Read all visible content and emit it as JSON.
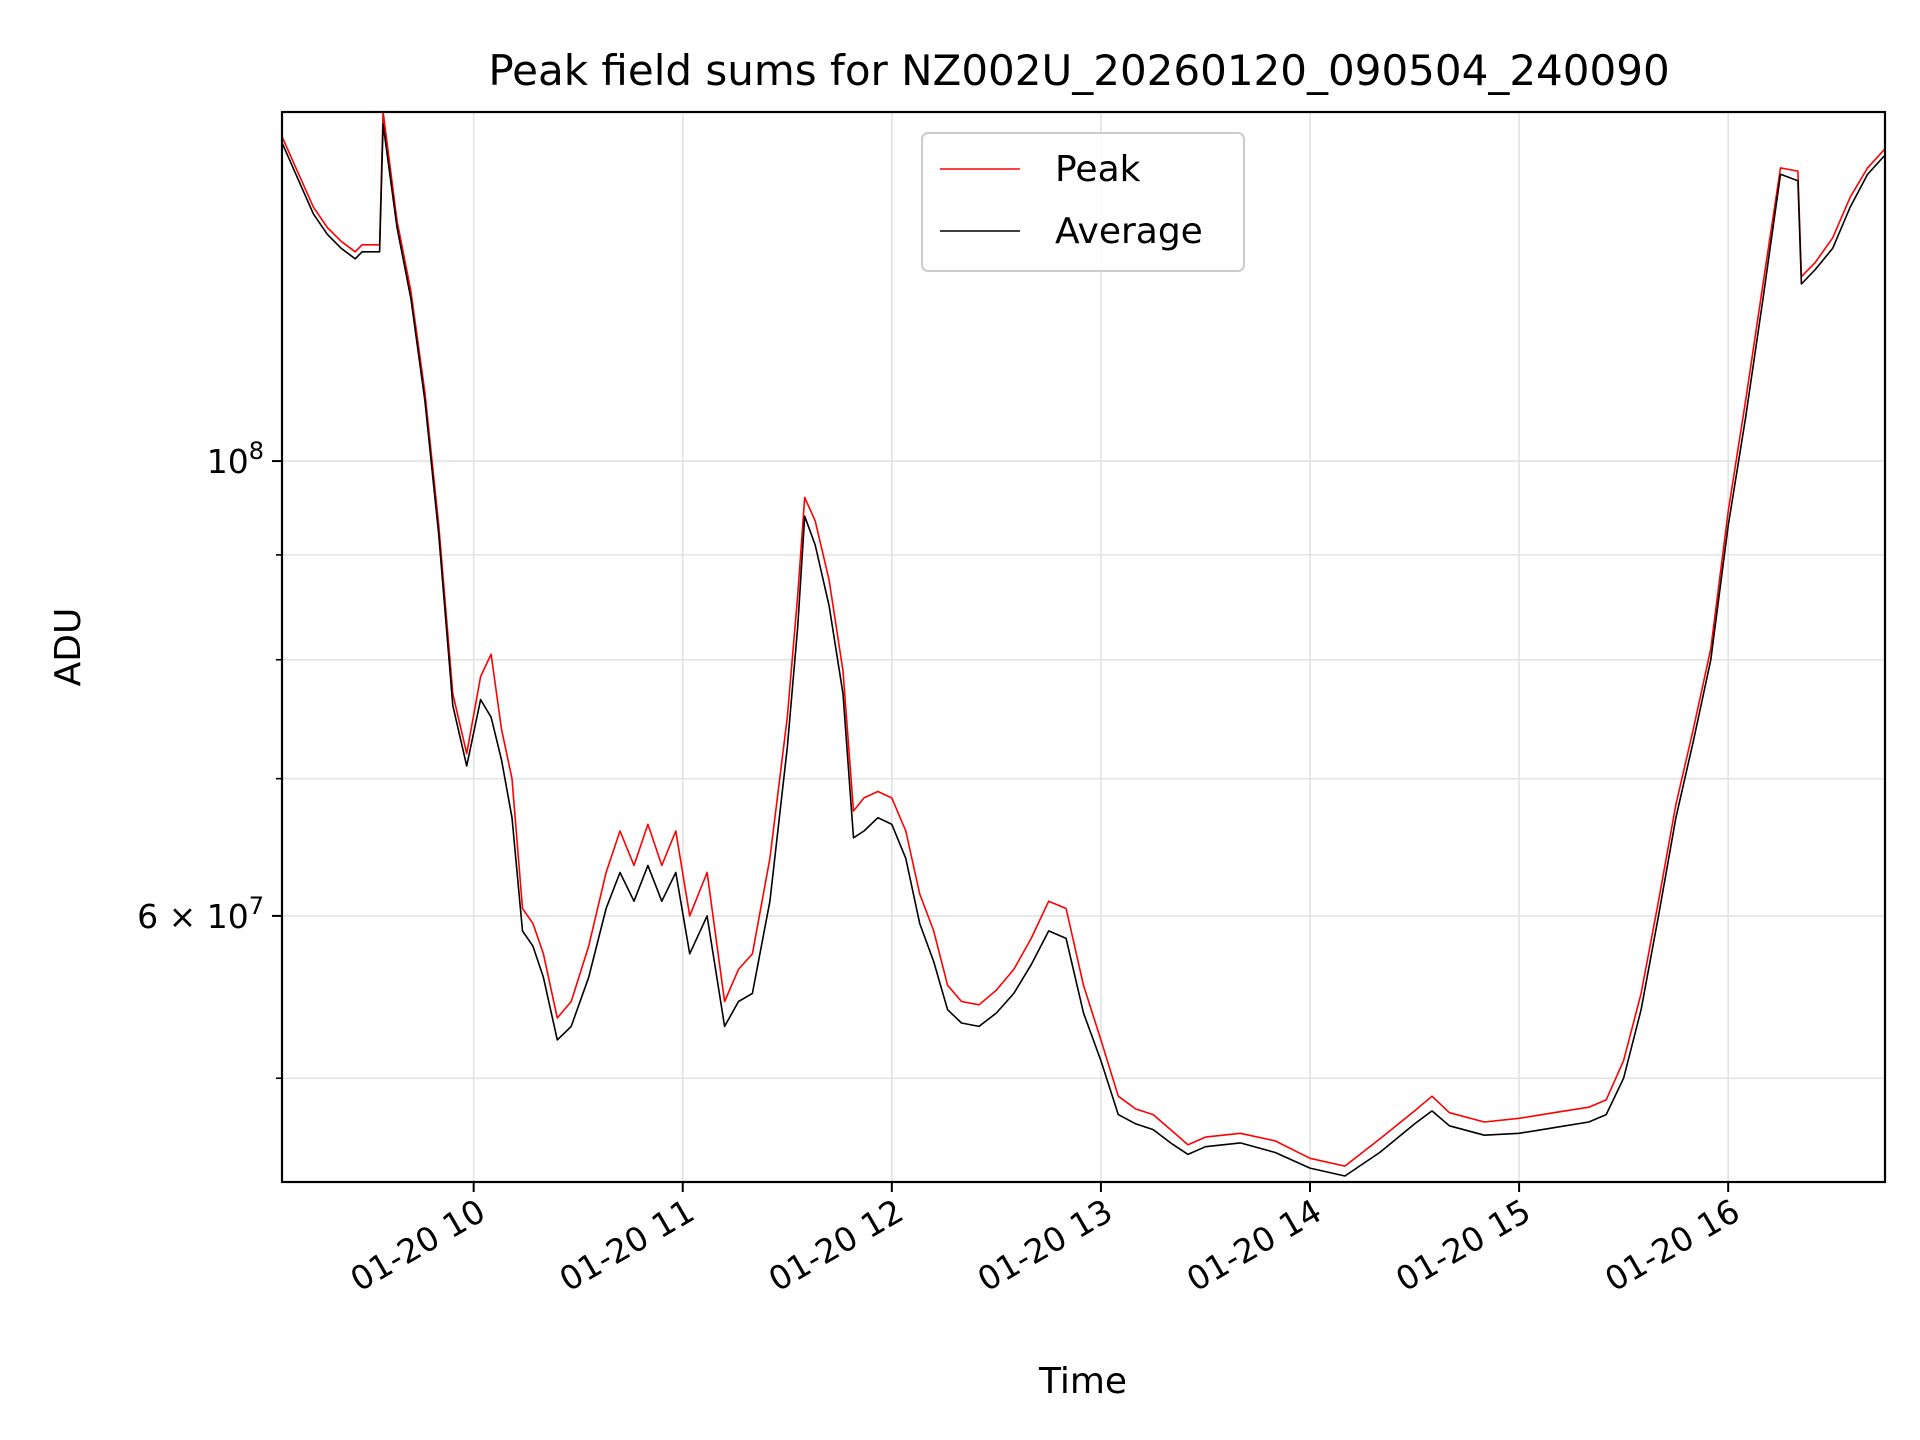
{
  "chart_data": {
    "type": "line",
    "title": "Peak field sums for NZ002U_20260120_090504_240090",
    "xlabel": "Time",
    "ylabel": "ADU",
    "yscale": "log",
    "grid": true,
    "legend_position": "top-center",
    "x_range": [
      "2026-01-20 09:05",
      "2026-01-20 16:45"
    ],
    "ylim": [
      44500000,
      148000000
    ],
    "x_ticks": [
      {
        "time": "2026-01-20 10:00",
        "label": "01-20 10"
      },
      {
        "time": "2026-01-20 11:00",
        "label": "01-20 11"
      },
      {
        "time": "2026-01-20 12:00",
        "label": "01-20 12"
      },
      {
        "time": "2026-01-20 13:00",
        "label": "01-20 13"
      },
      {
        "time": "2026-01-20 14:00",
        "label": "01-20 14"
      },
      {
        "time": "2026-01-20 15:00",
        "label": "01-20 15"
      },
      {
        "time": "2026-01-20 16:00",
        "label": "01-20 16"
      }
    ],
    "y_ticks": [
      {
        "value": 100000000,
        "label": "10",
        "exp": "8"
      },
      {
        "value": 60000000,
        "label": "6 × 10",
        "exp": "7"
      }
    ],
    "y_minor_ticks": [
      50000000,
      70000000,
      80000000,
      90000000
    ],
    "colors": {
      "peak": "#ff0000",
      "average": "#000000"
    },
    "series": [
      {
        "name": "Average",
        "color": "#000000",
        "x": [
          "2026-01-20 09:05",
          "2026-01-20 09:09",
          "2026-01-20 09:14",
          "2026-01-20 09:18",
          "2026-01-20 09:22",
          "2026-01-20 09:26",
          "2026-01-20 09:28",
          "2026-01-20 09:33",
          "2026-01-20 09:34",
          "2026-01-20 09:38",
          "2026-01-20 09:42",
          "2026-01-20 09:46",
          "2026-01-20 09:50",
          "2026-01-20 09:54",
          "2026-01-20 09:58",
          "2026-01-20 10:02",
          "2026-01-20 10:05",
          "2026-01-20 10:08",
          "2026-01-20 10:11",
          "2026-01-20 10:14",
          "2026-01-20 10:17",
          "2026-01-20 10:20",
          "2026-01-20 10:24",
          "2026-01-20 10:28",
          "2026-01-20 10:33",
          "2026-01-20 10:38",
          "2026-01-20 10:42",
          "2026-01-20 10:46",
          "2026-01-20 10:50",
          "2026-01-20 10:54",
          "2026-01-20 10:58",
          "2026-01-20 11:02",
          "2026-01-20 11:07",
          "2026-01-20 11:12",
          "2026-01-20 11:16",
          "2026-01-20 11:20",
          "2026-01-20 11:25",
          "2026-01-20 11:30",
          "2026-01-20 11:33",
          "2026-01-20 11:35",
          "2026-01-20 11:38",
          "2026-01-20 11:42",
          "2026-01-20 11:46",
          "2026-01-20 11:49",
          "2026-01-20 11:52",
          "2026-01-20 11:56",
          "2026-01-20 12:00",
          "2026-01-20 12:04",
          "2026-01-20 12:08",
          "2026-01-20 12:12",
          "2026-01-20 12:16",
          "2026-01-20 12:20",
          "2026-01-20 12:25",
          "2026-01-20 12:30",
          "2026-01-20 12:35",
          "2026-01-20 12:40",
          "2026-01-20 12:45",
          "2026-01-20 12:50",
          "2026-01-20 12:55",
          "2026-01-20 13:00",
          "2026-01-20 13:05",
          "2026-01-20 13:10",
          "2026-01-20 13:15",
          "2026-01-20 13:20",
          "2026-01-20 13:25",
          "2026-01-20 13:30",
          "2026-01-20 13:40",
          "2026-01-20 13:50",
          "2026-01-20 14:00",
          "2026-01-20 14:10",
          "2026-01-20 14:20",
          "2026-01-20 14:30",
          "2026-01-20 14:35",
          "2026-01-20 14:40",
          "2026-01-20 14:50",
          "2026-01-20 15:00",
          "2026-01-20 15:10",
          "2026-01-20 15:20",
          "2026-01-20 15:25",
          "2026-01-20 15:30",
          "2026-01-20 15:35",
          "2026-01-20 15:40",
          "2026-01-20 15:45",
          "2026-01-20 15:50",
          "2026-01-20 15:55",
          "2026-01-20 16:00",
          "2026-01-20 16:05",
          "2026-01-20 16:10",
          "2026-01-20 16:15",
          "2026-01-20 16:20",
          "2026-01-20 16:21",
          "2026-01-20 16:25",
          "2026-01-20 16:30",
          "2026-01-20 16:35",
          "2026-01-20 16:40",
          "2026-01-20 16:45"
        ],
        "y": [
          143000000,
          138000000,
          132000000,
          129000000,
          127000000,
          125500000,
          126500000,
          126500000,
          146000000,
          130000000,
          120000000,
          107000000,
          92000000,
          76000000,
          71000000,
          76500000,
          75000000,
          71500000,
          67000000,
          59000000,
          58000000,
          56000000,
          52200000,
          53000000,
          56000000,
          60500000,
          63000000,
          61000000,
          63500000,
          61000000,
          63000000,
          57500000,
          60000000,
          53000000,
          54500000,
          55000000,
          61000000,
          72500000,
          83000000,
          94000000,
          91000000,
          85000000,
          77000000,
          65500000,
          66000000,
          67000000,
          66500000,
          64000000,
          59500000,
          57000000,
          54000000,
          53200000,
          53000000,
          53800000,
          55000000,
          56800000,
          59000000,
          58500000,
          53800000,
          51000000,
          48000000,
          47500000,
          47200000,
          46500000,
          45900000,
          46300000,
          46500000,
          46000000,
          45200000,
          44800000,
          46000000,
          47500000,
          48200000,
          47400000,
          46900000,
          47000000,
          47300000,
          47600000,
          48000000,
          50000000,
          54000000,
          60000000,
          67000000,
          73000000,
          80000000,
          93000000,
          105000000,
          120000000,
          138000000,
          137000000,
          122000000,
          124000000,
          127000000,
          133000000,
          138000000,
          141000000
        ]
      },
      {
        "name": "Peak",
        "color": "#ff0000",
        "x": [
          "2026-01-20 09:05",
          "2026-01-20 09:09",
          "2026-01-20 09:14",
          "2026-01-20 09:18",
          "2026-01-20 09:22",
          "2026-01-20 09:26",
          "2026-01-20 09:28",
          "2026-01-20 09:33",
          "2026-01-20 09:34",
          "2026-01-20 09:38",
          "2026-01-20 09:42",
          "2026-01-20 09:46",
          "2026-01-20 09:50",
          "2026-01-20 09:54",
          "2026-01-20 09:58",
          "2026-01-20 10:02",
          "2026-01-20 10:05",
          "2026-01-20 10:08",
          "2026-01-20 10:11",
          "2026-01-20 10:14",
          "2026-01-20 10:17",
          "2026-01-20 10:20",
          "2026-01-20 10:24",
          "2026-01-20 10:28",
          "2026-01-20 10:33",
          "2026-01-20 10:38",
          "2026-01-20 10:42",
          "2026-01-20 10:46",
          "2026-01-20 10:50",
          "2026-01-20 10:54",
          "2026-01-20 10:58",
          "2026-01-20 11:02",
          "2026-01-20 11:07",
          "2026-01-20 11:12",
          "2026-01-20 11:16",
          "2026-01-20 11:20",
          "2026-01-20 11:25",
          "2026-01-20 11:30",
          "2026-01-20 11:33",
          "2026-01-20 11:35",
          "2026-01-20 11:38",
          "2026-01-20 11:42",
          "2026-01-20 11:46",
          "2026-01-20 11:49",
          "2026-01-20 11:52",
          "2026-01-20 11:56",
          "2026-01-20 12:00",
          "2026-01-20 12:04",
          "2026-01-20 12:08",
          "2026-01-20 12:12",
          "2026-01-20 12:16",
          "2026-01-20 12:20",
          "2026-01-20 12:25",
          "2026-01-20 12:30",
          "2026-01-20 12:35",
          "2026-01-20 12:40",
          "2026-01-20 12:45",
          "2026-01-20 12:50",
          "2026-01-20 12:55",
          "2026-01-20 13:00",
          "2026-01-20 13:05",
          "2026-01-20 13:10",
          "2026-01-20 13:15",
          "2026-01-20 13:20",
          "2026-01-20 13:25",
          "2026-01-20 13:30",
          "2026-01-20 13:40",
          "2026-01-20 13:50",
          "2026-01-20 14:00",
          "2026-01-20 14:10",
          "2026-01-20 14:20",
          "2026-01-20 14:30",
          "2026-01-20 14:35",
          "2026-01-20 14:40",
          "2026-01-20 14:50",
          "2026-01-20 15:00",
          "2026-01-20 15:10",
          "2026-01-20 15:20",
          "2026-01-20 15:25",
          "2026-01-20 15:30",
          "2026-01-20 15:35",
          "2026-01-20 15:40",
          "2026-01-20 15:45",
          "2026-01-20 15:50",
          "2026-01-20 15:55",
          "2026-01-20 16:00",
          "2026-01-20 16:05",
          "2026-01-20 16:10",
          "2026-01-20 16:15",
          "2026-01-20 16:20",
          "2026-01-20 16:21",
          "2026-01-20 16:25",
          "2026-01-20 16:30",
          "2026-01-20 16:35",
          "2026-01-20 16:40",
          "2026-01-20 16:45"
        ],
        "y": [
          144000000,
          139000000,
          133000000,
          130000000,
          128000000,
          126500000,
          127500000,
          127500000,
          148000000,
          131000000,
          121000000,
          108000000,
          93000000,
          77000000,
          72000000,
          78500000,
          80500000,
          74000000,
          70000000,
          60500000,
          59500000,
          57500000,
          53500000,
          54500000,
          58000000,
          63000000,
          66000000,
          63500000,
          66500000,
          63500000,
          66000000,
          60000000,
          63000000,
          54500000,
          56500000,
          57500000,
          64000000,
          75000000,
          86000000,
          96000000,
          93500000,
          87500000,
          79000000,
          67500000,
          68500000,
          69000000,
          68500000,
          66000000,
          61500000,
          59000000,
          55500000,
          54500000,
          54300000,
          55200000,
          56500000,
          58500000,
          61000000,
          60500000,
          55500000,
          52200000,
          49000000,
          48300000,
          48000000,
          47200000,
          46400000,
          46800000,
          47000000,
          46600000,
          45700000,
          45300000,
          46700000,
          48200000,
          49000000,
          48100000,
          47600000,
          47800000,
          48100000,
          48400000,
          48800000,
          51000000,
          55000000,
          61000000,
          68000000,
          74000000,
          81000000,
          94500000,
          107000000,
          122000000,
          139000000,
          138500000,
          123000000,
          125000000,
          128500000,
          134500000,
          139000000,
          142000000
        ]
      }
    ]
  }
}
